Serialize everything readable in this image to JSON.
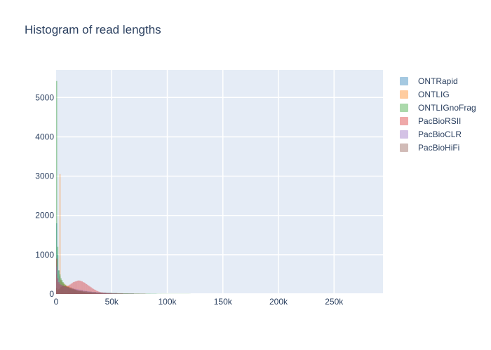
{
  "chart_data": {
    "type": "histogram",
    "title": "Histogram of read lengths",
    "xlabel": "",
    "ylabel": "",
    "xlim": [
      0,
      294000
    ],
    "ylim": [
      0,
      5700
    ],
    "x_ticks": [
      0,
      50000,
      100000,
      150000,
      200000,
      250000
    ],
    "x_tick_labels": [
      "0",
      "50k",
      "100k",
      "150k",
      "200k",
      "250k"
    ],
    "y_ticks": [
      0,
      1000,
      2000,
      3000,
      4000,
      5000
    ],
    "y_tick_labels": [
      "0",
      "1000",
      "2000",
      "3000",
      "4000",
      "5000"
    ],
    "grid": true,
    "legend_position": "right",
    "bin_width": 1000,
    "series": [
      {
        "name": "ONTRapid",
        "color": "#1f77b4",
        "bins": [
          [
            0,
            1800
          ],
          [
            1000,
            1000
          ],
          [
            2000,
            600
          ],
          [
            3000,
            450
          ],
          [
            4000,
            350
          ],
          [
            5000,
            300
          ],
          [
            6000,
            250
          ],
          [
            7000,
            220
          ],
          [
            8000,
            200
          ],
          [
            9000,
            180
          ],
          [
            10000,
            160
          ],
          [
            12000,
            130
          ],
          [
            14000,
            110
          ],
          [
            16000,
            95
          ],
          [
            18000,
            85
          ],
          [
            20000,
            75
          ],
          [
            24000,
            60
          ],
          [
            28000,
            50
          ],
          [
            32000,
            40
          ],
          [
            36000,
            35
          ],
          [
            40000,
            30
          ],
          [
            45000,
            25
          ],
          [
            50000,
            20
          ],
          [
            55000,
            15
          ],
          [
            60000,
            12
          ],
          [
            70000,
            8
          ],
          [
            80000,
            5
          ],
          [
            90000,
            3
          ]
        ]
      },
      {
        "name": "ONTLIG",
        "color": "#ff7f0e",
        "bins": [
          [
            0,
            500
          ],
          [
            1000,
            300
          ],
          [
            2000,
            250
          ],
          [
            3000,
            3050
          ],
          [
            4000,
            350
          ],
          [
            5000,
            300
          ],
          [
            6000,
            280
          ],
          [
            7000,
            260
          ],
          [
            8000,
            240
          ],
          [
            9000,
            220
          ],
          [
            10000,
            200
          ],
          [
            12000,
            170
          ],
          [
            14000,
            140
          ],
          [
            16000,
            120
          ],
          [
            18000,
            100
          ],
          [
            20000,
            90
          ],
          [
            24000,
            70
          ],
          [
            28000,
            55
          ],
          [
            32000,
            45
          ],
          [
            36000,
            35
          ],
          [
            40000,
            28
          ],
          [
            45000,
            22
          ],
          [
            50000,
            18
          ],
          [
            60000,
            12
          ],
          [
            70000,
            8
          ],
          [
            80000,
            5
          ]
        ]
      },
      {
        "name": "ONTLIGnoFrag",
        "color": "#2ca02c",
        "bins": [
          [
            0,
            5420
          ],
          [
            1000,
            1200
          ],
          [
            2000,
            600
          ],
          [
            3000,
            500
          ],
          [
            4000,
            400
          ],
          [
            5000,
            350
          ],
          [
            6000,
            300
          ],
          [
            7000,
            260
          ],
          [
            8000,
            230
          ],
          [
            9000,
            200
          ],
          [
            10000,
            180
          ],
          [
            12000,
            150
          ],
          [
            14000,
            130
          ],
          [
            16000,
            110
          ],
          [
            18000,
            95
          ],
          [
            20000,
            85
          ],
          [
            24000,
            70
          ],
          [
            28000,
            60
          ],
          [
            32000,
            50
          ],
          [
            36000,
            40
          ],
          [
            40000,
            35
          ],
          [
            45000,
            30
          ],
          [
            50000,
            25
          ],
          [
            55000,
            20
          ],
          [
            60000,
            18
          ],
          [
            65000,
            15
          ],
          [
            70000,
            12
          ],
          [
            75000,
            10
          ],
          [
            80000,
            8
          ],
          [
            85000,
            6
          ],
          [
            90000,
            5
          ],
          [
            95000,
            4
          ],
          [
            100000,
            3
          ],
          [
            120000,
            2
          ]
        ]
      },
      {
        "name": "PacBioRSII",
        "color": "#d62728",
        "bins": [
          [
            0,
            900
          ],
          [
            1000,
            400
          ],
          [
            2000,
            300
          ],
          [
            3000,
            250
          ],
          [
            4000,
            230
          ],
          [
            5000,
            220
          ],
          [
            6000,
            210
          ],
          [
            7000,
            200
          ],
          [
            8000,
            200
          ],
          [
            9000,
            200
          ],
          [
            10000,
            210
          ],
          [
            11000,
            220
          ],
          [
            12000,
            240
          ],
          [
            13000,
            260
          ],
          [
            14000,
            280
          ],
          [
            15000,
            300
          ],
          [
            16000,
            310
          ],
          [
            17000,
            320
          ],
          [
            18000,
            330
          ],
          [
            19000,
            340
          ],
          [
            20000,
            345
          ],
          [
            21000,
            340
          ],
          [
            22000,
            330
          ],
          [
            23000,
            320
          ],
          [
            24000,
            300
          ],
          [
            25000,
            290
          ],
          [
            26000,
            270
          ],
          [
            27000,
            250
          ],
          [
            28000,
            230
          ],
          [
            29000,
            210
          ],
          [
            30000,
            190
          ],
          [
            31000,
            170
          ],
          [
            32000,
            150
          ],
          [
            33000,
            130
          ],
          [
            34000,
            115
          ],
          [
            35000,
            100
          ],
          [
            36000,
            85
          ],
          [
            37000,
            72
          ],
          [
            38000,
            60
          ],
          [
            39000,
            50
          ],
          [
            40000,
            42
          ],
          [
            42000,
            32
          ],
          [
            44000,
            24
          ],
          [
            46000,
            18
          ],
          [
            48000,
            13
          ],
          [
            50000,
            9
          ],
          [
            55000,
            5
          ],
          [
            60000,
            3
          ]
        ]
      },
      {
        "name": "PacBioCLR",
        "color": "#9467bd",
        "bins": [
          [
            0,
            700
          ],
          [
            1000,
            400
          ],
          [
            2000,
            300
          ],
          [
            3000,
            260
          ],
          [
            4000,
            240
          ],
          [
            5000,
            220
          ],
          [
            6000,
            200
          ],
          [
            7000,
            190
          ],
          [
            8000,
            180
          ],
          [
            9000,
            170
          ],
          [
            10000,
            160
          ],
          [
            12000,
            150
          ],
          [
            14000,
            140
          ],
          [
            16000,
            130
          ],
          [
            18000,
            120
          ],
          [
            20000,
            110
          ],
          [
            22000,
            100
          ],
          [
            24000,
            90
          ],
          [
            26000,
            80
          ],
          [
            28000,
            70
          ],
          [
            30000,
            60
          ],
          [
            32000,
            55
          ],
          [
            34000,
            50
          ],
          [
            36000,
            45
          ],
          [
            38000,
            40
          ],
          [
            40000,
            35
          ],
          [
            45000,
            28
          ],
          [
            50000,
            20
          ],
          [
            55000,
            15
          ],
          [
            60000,
            10
          ],
          [
            70000,
            6
          ],
          [
            80000,
            3
          ]
        ]
      },
      {
        "name": "PacBioHiFi",
        "color": "#8c564b",
        "bins": [
          [
            0,
            150
          ],
          [
            1000,
            100
          ],
          [
            2000,
            120
          ],
          [
            3000,
            150
          ],
          [
            4000,
            180
          ],
          [
            5000,
            200
          ],
          [
            6000,
            210
          ],
          [
            7000,
            210
          ],
          [
            8000,
            200
          ],
          [
            9000,
            190
          ],
          [
            10000,
            180
          ],
          [
            11000,
            170
          ],
          [
            12000,
            160
          ],
          [
            13000,
            150
          ],
          [
            14000,
            140
          ],
          [
            15000,
            130
          ],
          [
            16000,
            120
          ],
          [
            17000,
            110
          ],
          [
            18000,
            100
          ],
          [
            19000,
            90
          ],
          [
            20000,
            80
          ],
          [
            22000,
            65
          ],
          [
            24000,
            50
          ],
          [
            26000,
            38
          ],
          [
            28000,
            28
          ],
          [
            30000,
            20
          ],
          [
            32000,
            14
          ],
          [
            34000,
            10
          ],
          [
            36000,
            7
          ],
          [
            40000,
            4
          ]
        ]
      }
    ]
  }
}
